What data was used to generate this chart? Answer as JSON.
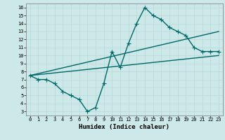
{
  "title": "",
  "xlabel": "Humidex (Indice chaleur)",
  "ylabel": "",
  "bg_color": "#cce8e8",
  "grid_color": "#b8d8d8",
  "line_color": "#006868",
  "xlim": [
    -0.5,
    23.5
  ],
  "ylim": [
    2.5,
    16.5
  ],
  "xticks": [
    0,
    1,
    2,
    3,
    4,
    5,
    6,
    7,
    8,
    9,
    10,
    11,
    12,
    13,
    14,
    15,
    16,
    17,
    18,
    19,
    20,
    21,
    22,
    23
  ],
  "yticks": [
    3,
    4,
    5,
    6,
    7,
    8,
    9,
    10,
    11,
    12,
    13,
    14,
    15,
    16
  ],
  "line1_x": [
    0,
    1,
    2,
    3,
    4,
    5,
    6,
    7,
    8,
    9,
    10,
    11,
    12,
    13,
    14,
    15,
    16,
    17,
    18,
    19,
    20,
    21,
    22,
    23
  ],
  "line1_y": [
    7.5,
    7.0,
    7.0,
    6.5,
    5.5,
    5.0,
    4.5,
    3.0,
    3.5,
    6.5,
    10.5,
    8.5,
    11.5,
    14.0,
    16.0,
    15.0,
    14.5,
    13.5,
    13.0,
    12.5,
    11.0,
    10.5,
    10.5,
    10.5
  ],
  "line2_x": [
    0,
    23
  ],
  "line2_y": [
    7.5,
    13.0
  ],
  "line3_x": [
    0,
    23
  ],
  "line3_y": [
    7.5,
    10.0
  ],
  "markersize": 2.5,
  "linewidth": 1.0,
  "tick_fontsize": 5.0,
  "label_fontsize": 6.5
}
